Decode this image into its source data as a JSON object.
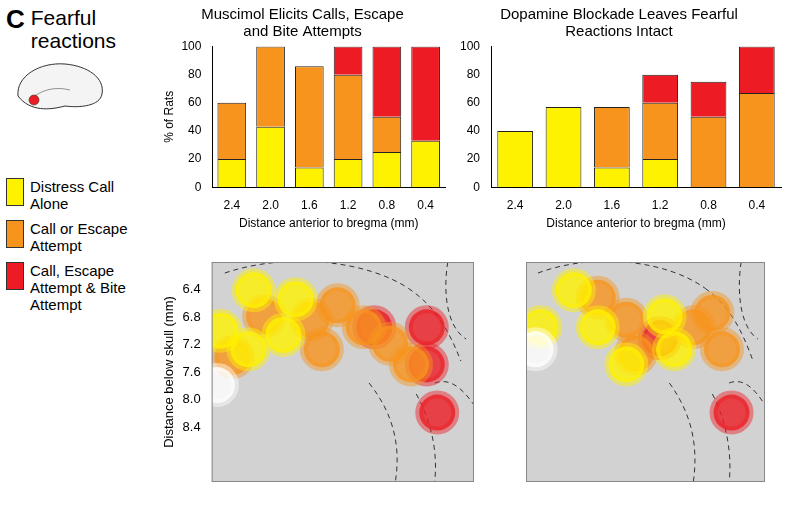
{
  "panel_label": "C",
  "panel_title": "Fearful reactions",
  "chart_data": [
    {
      "type": "bar",
      "title": "Muscimol Elicits Calls, Escape and Bite Attempts",
      "xlabel": "Distance anterior to bregma (mm)",
      "ylabel": "% of Rats",
      "categories": [
        "2.4",
        "2.0",
        "1.6",
        "1.2",
        "0.8",
        "0.4"
      ],
      "stacked": true,
      "grid": false,
      "legend": "left",
      "ylim": [
        0,
        100
      ],
      "yticks": [
        0,
        20,
        40,
        60,
        80,
        100
      ],
      "series": [
        {
          "name": "Distress Call Alone",
          "color": "#fff200",
          "values": [
            20,
            43,
            14,
            20,
            25,
            33
          ]
        },
        {
          "name": "Call or Escape Attempt",
          "color": "#f7941d",
          "values": [
            40,
            57,
            72,
            60,
            25,
            0
          ]
        },
        {
          "name": "Call, Escape Attempt & Bite Attempt",
          "color": "#ed1c24",
          "values": [
            0,
            0,
            0,
            20,
            50,
            67
          ]
        }
      ]
    },
    {
      "type": "bar",
      "title": "Dopamine Blockade Leaves Fearful Reactions Intact",
      "xlabel": "Distance anterior to bregma (mm)",
      "categories": [
        "2.4",
        "2.0",
        "1.6",
        "1.2",
        "0.8",
        "0.4"
      ],
      "stacked": true,
      "grid": false,
      "ylim": [
        0,
        100
      ],
      "yticks": [
        0,
        20,
        40,
        60,
        80,
        100
      ],
      "series": [
        {
          "name": "Distress Call Alone",
          "color": "#fff200",
          "values": [
            40,
            57,
            14,
            20,
            0,
            0
          ]
        },
        {
          "name": "Call or Escape Attempt",
          "color": "#f7941d",
          "values": [
            0,
            0,
            43,
            40,
            50,
            67
          ]
        },
        {
          "name": "Call, Escape Attempt & Bite Attempt",
          "color": "#ed1c24",
          "values": [
            0,
            0,
            0,
            20,
            25,
            33
          ]
        }
      ]
    },
    {
      "type": "scatter",
      "ylabel": "Distance below skull (mm)",
      "grid": false,
      "tick_labels": "y",
      "xlim": [
        3,
        0
      ],
      "ylim": [
        9.2,
        6.0
      ],
      "yticks": [
        6.4,
        6.8,
        7.2,
        7.6,
        {
          "value": 8.0,
          "label": "8.0"
        },
        8.4
      ],
      "series": [
        {
          "color": "#ffffff",
          "x": [
            2.94
          ],
          "values": [
            7.79
          ]
        },
        {
          "name": "Distress Call Alone",
          "color": "#fff200",
          "x": [
            2.9,
            2.52,
            2.04,
            2.18,
            2.58
          ],
          "values": [
            7.0,
            6.41,
            6.54,
            7.06,
            7.27
          ]
        },
        {
          "name": "Call or Escape Attempt",
          "color": "#f7941d",
          "x": [
            2.4,
            1.86,
            1.56,
            1.26,
            0.96,
            1.74,
            2.76,
            0.72
          ],
          "values": [
            6.79,
            6.84,
            6.63,
            6.95,
            7.19,
            7.27,
            7.38,
            7.49
          ]
        },
        {
          "name": "Call, Escape Attempt & Bite Attempt",
          "color": "#ed1c24",
          "x": [
            1.14,
            0.54,
            0.54,
            0.42
          ],
          "values": [
            6.95,
            6.95,
            7.49,
            8.19
          ]
        }
      ]
    },
    {
      "type": "scatter",
      "grid": false,
      "tick_labels": false,
      "xlim": [
        3,
        0
      ],
      "ylim": [
        9.2,
        6.0
      ],
      "series": [
        {
          "color": "#ffffff",
          "x": [
            2.88
          ],
          "values": [
            7.27
          ]
        },
        {
          "name": "Distress Call Alone",
          "color": "#fff200",
          "x": [
            2.82,
            2.4,
            2.1,
            1.74,
            1.26,
            1.14
          ],
          "values": [
            6.95,
            6.41,
            6.95,
            7.49,
            6.79,
            7.27
          ]
        },
        {
          "name": "Call or Escape Attempt",
          "color": "#f7941d",
          "x": [
            2.1,
            1.74,
            1.62,
            0.9,
            0.66,
            0.54
          ],
          "values": [
            6.52,
            6.84,
            7.33,
            6.95,
            6.74,
            7.27
          ]
        },
        {
          "name": "Call, Escape Attempt & Bite Attempt",
          "color": "#ed1c24",
          "x": [
            1.32,
            0.42
          ],
          "values": [
            7.11,
            8.19
          ]
        }
      ]
    }
  ]
}
